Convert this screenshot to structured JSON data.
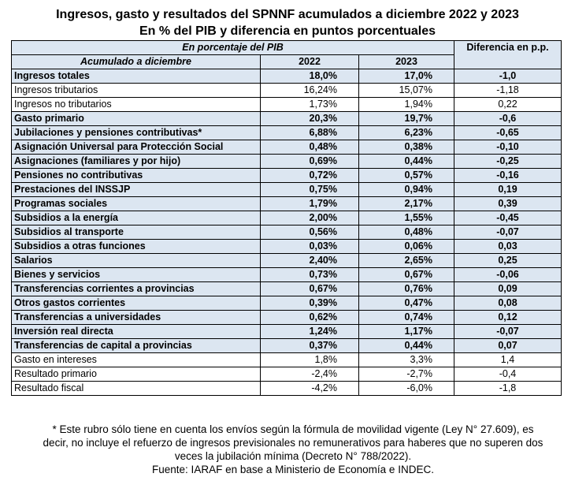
{
  "title_line1": "Ingresos, gasto y resultados del SPNNF acumulados a diciembre 2022 y 2023",
  "title_line2": "En % del PIB y diferencia en puntos porcentuales",
  "header": {
    "unit_label": "En porcentaje del PIB",
    "period_label": "Acumulado a diciembre",
    "col_2022": "2022",
    "col_2023": "2023",
    "col_diff": "Diferencia en p.p."
  },
  "chart_data": {
    "type": "table",
    "columns": [
      "2022",
      "2023",
      "Diferencia en p.p."
    ],
    "rows": [
      {
        "label": "Ingresos totales",
        "y2022": "18,0%",
        "y2023": "17,0%",
        "diff": "-1,0",
        "bold": true
      },
      {
        "label": "Ingresos tributarios",
        "y2022": "16,24%",
        "y2023": "15,07%",
        "diff": "-1,18",
        "bold": false
      },
      {
        "label": "Ingresos no tributarios",
        "y2022": "1,73%",
        "y2023": "1,94%",
        "diff": "0,22",
        "bold": false
      },
      {
        "label": "Gasto primario",
        "y2022": "20,3%",
        "y2023": "19,7%",
        "diff": "-0,6",
        "bold": true
      },
      {
        "label": "Jubilaciones y pensiones contributivas*",
        "y2022": "6,88%",
        "y2023": "6,23%",
        "diff": "-0,65",
        "bold": true
      },
      {
        "label": "Asignación Universal para Protección Social",
        "y2022": "0,48%",
        "y2023": "0,38%",
        "diff": "-0,10",
        "bold": true
      },
      {
        "label": "Asignaciones (familiares y por hijo)",
        "y2022": "0,69%",
        "y2023": "0,44%",
        "diff": "-0,25",
        "bold": true
      },
      {
        "label": "Pensiones no contributivas",
        "y2022": "0,72%",
        "y2023": "0,57%",
        "diff": "-0,16",
        "bold": true
      },
      {
        "label": "Prestaciones del INSSJP",
        "y2022": "0,75%",
        "y2023": "0,94%",
        "diff": "0,19",
        "bold": true
      },
      {
        "label": "Programas sociales",
        "y2022": "1,79%",
        "y2023": "2,17%",
        "diff": "0,39",
        "bold": true
      },
      {
        "label": "Subsidios a la energía",
        "y2022": "2,00%",
        "y2023": "1,55%",
        "diff": "-0,45",
        "bold": true
      },
      {
        "label": "Subsidios al transporte",
        "y2022": "0,56%",
        "y2023": "0,48%",
        "diff": "-0,07",
        "bold": true
      },
      {
        "label": "Subsidios a otras funciones",
        "y2022": "0,03%",
        "y2023": "0,06%",
        "diff": "0,03",
        "bold": true
      },
      {
        "label": "Salarios",
        "y2022": "2,40%",
        "y2023": "2,65%",
        "diff": "0,25",
        "bold": true
      },
      {
        "label": "Bienes y servicios",
        "y2022": "0,73%",
        "y2023": "0,67%",
        "diff": "-0,06",
        "bold": true
      },
      {
        "label": "Transferencias corrientes a provincias",
        "y2022": "0,67%",
        "y2023": "0,76%",
        "diff": "0,09",
        "bold": true
      },
      {
        "label": "Otros gastos corrientes",
        "y2022": "0,39%",
        "y2023": "0,47%",
        "diff": "0,08",
        "bold": true
      },
      {
        "label": "Transferencias a universidades",
        "y2022": "0,62%",
        "y2023": "0,74%",
        "diff": "0,12",
        "bold": true
      },
      {
        "label": "Inversión real directa",
        "y2022": "1,24%",
        "y2023": "1,17%",
        "diff": "-0,07",
        "bold": true
      },
      {
        "label": "Transferencias de capital a provincias",
        "y2022": "0,37%",
        "y2023": "0,44%",
        "diff": "0,07",
        "bold": true
      },
      {
        "label": "Gasto en intereses",
        "y2022": "1,8%",
        "y2023": "3,3%",
        "diff": "1,4",
        "bold": false
      },
      {
        "label": "Resultado primario",
        "y2022": "-2,4%",
        "y2023": "-2,7%",
        "diff": "-0,4",
        "bold": false
      },
      {
        "label": "Resultado fiscal",
        "y2022": "-4,2%",
        "y2023": "-6,0%",
        "diff": "-1,8",
        "bold": false
      }
    ]
  },
  "footnote": {
    "line1": "* Este rubro sólo tiene en cuenta los envíos según la fórmula de movilidad vigente (Ley N° 27.609), es",
    "line2": "decir, no incluye el refuerzo de ingresos previsionales no remunerativos para haberes que no superen dos",
    "line3": "veces la jubilación mínima (Decreto N° 788/2022).",
    "source": "Fuente: IARAF en base a Ministerio de Economía e INDEC."
  },
  "colors": {
    "header_fill": "#dce6f1",
    "highlight_row_fill": "#dce6f1",
    "plain_row_fill": "#ffffff"
  }
}
